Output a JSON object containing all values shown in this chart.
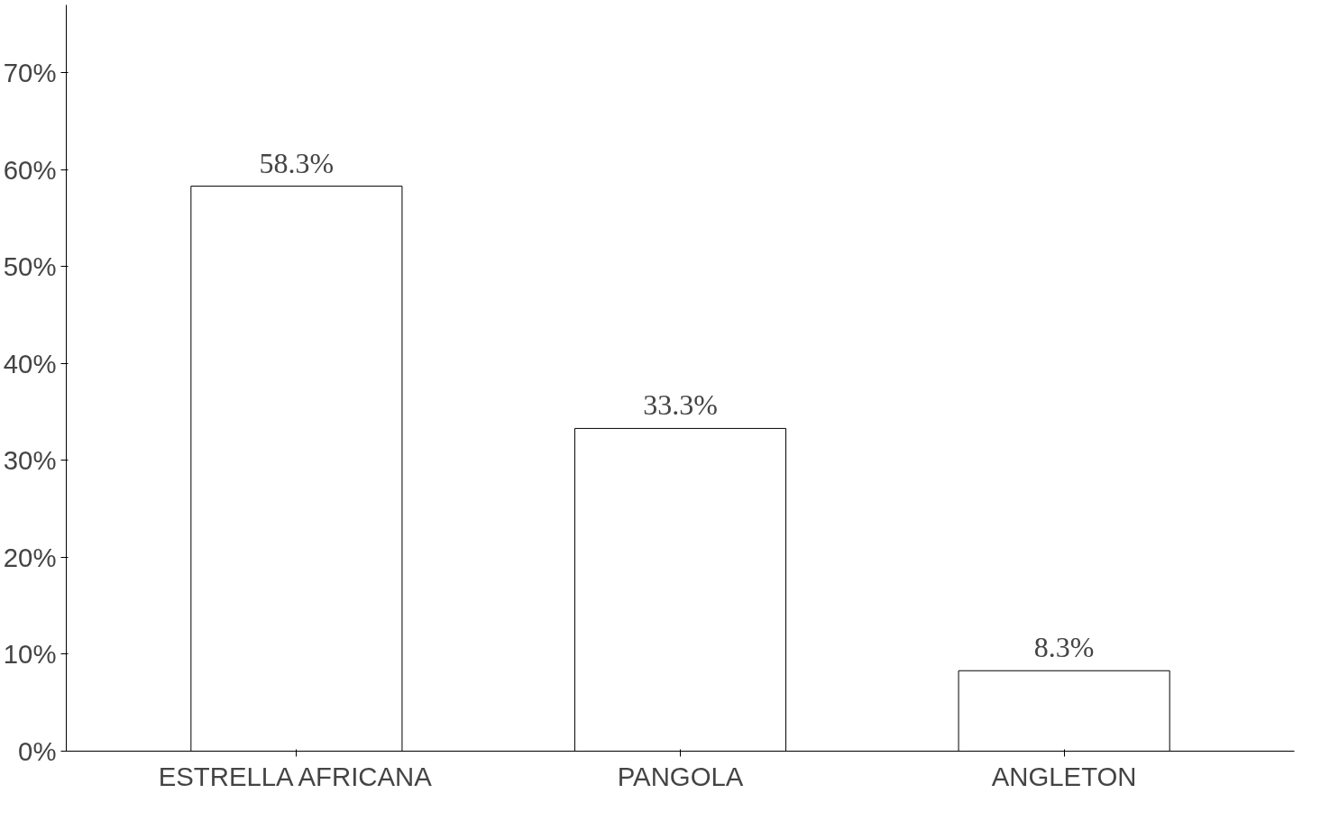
{
  "chart_data": {
    "type": "bar",
    "categories": [
      "ESTRELLA AFRICANA",
      "PANGOLA",
      "ANGLETON"
    ],
    "values": [
      58.3,
      33.3,
      8.3
    ],
    "color": "#ffffff",
    "value_labels": [
      "58.3%",
      "33.3%",
      "8.3%"
    ],
    "ylim": [
      0,
      77
    ],
    "yticks": [
      {
        "value": 0,
        "label": "0%"
      },
      {
        "value": 10,
        "label": "10%"
      },
      {
        "value": 20,
        "label": "20%"
      },
      {
        "value": 30,
        "label": "30%"
      },
      {
        "value": 40,
        "label": "40%"
      },
      {
        "value": 50,
        "label": "50%"
      },
      {
        "value": 60,
        "label": "60%"
      },
      {
        "value": 70,
        "label": "70%"
      }
    ],
    "grid": false
  }
}
